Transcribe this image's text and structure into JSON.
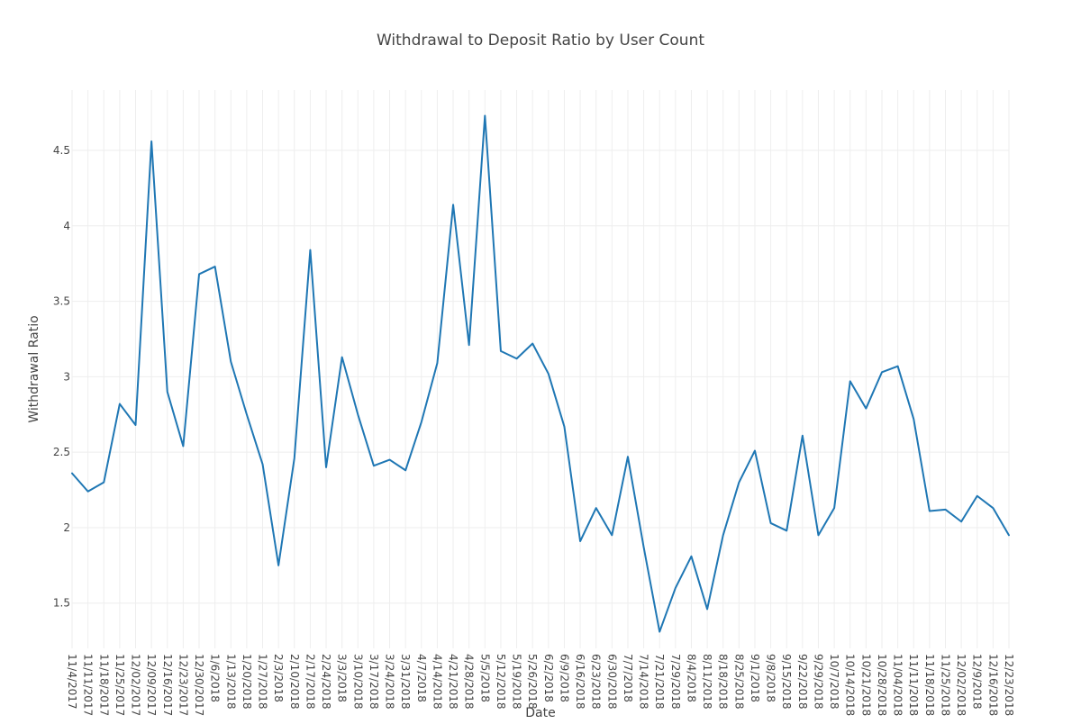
{
  "chart_data": {
    "type": "line",
    "title": "Withdrawal to Deposit Ratio by User Count",
    "xlabel": "Date",
    "ylabel": "Withdrawal Ratio",
    "ylim": [
      1.2,
      4.9
    ],
    "yticks": [
      1.5,
      2,
      2.5,
      3,
      3.5,
      4,
      4.5
    ],
    "ytick_labels": [
      "1.5",
      "2",
      "2.5",
      "3",
      "3.5",
      "4",
      "4.5"
    ],
    "grid": true,
    "line_color": "#1f77b4",
    "x": [
      "11/4/2017",
      "11/11/2017",
      "11/18/2017",
      "11/25/2017",
      "12/02/2017",
      "12/09/2017",
      "12/16/2017",
      "12/23/2017",
      "12/30/2017",
      "1/6/2018",
      "1/13/2018",
      "1/20/2018",
      "1/27/2018",
      "2/3/2018",
      "2/10/2018",
      "2/17/2018",
      "2/24/2018",
      "3/3/2018",
      "3/10/2018",
      "3/17/2018",
      "3/24/2018",
      "3/31/2018",
      "4/7/2018",
      "4/14/2018",
      "4/21/2018",
      "4/28/2018",
      "5/5/2018",
      "5/12/2018",
      "5/19/2018",
      "5/26/2018",
      "6/2/2018",
      "6/9/2018",
      "6/16/2018",
      "6/23/2018",
      "6/30/2018",
      "7/7/2018",
      "7/14/2018",
      "7/21/2018",
      "7/29/2018",
      "8/4/2018",
      "8/11/2018",
      "8/18/2018",
      "8/25/2018",
      "9/1/2018",
      "9/8/2018",
      "9/15/2018",
      "9/22/2018",
      "9/29/2018",
      "10/7/2018",
      "10/14/2018",
      "10/21/2018",
      "10/28/2018",
      "11/04/2018",
      "11/11/2018",
      "11/18/2018",
      "11/25/2018",
      "12/02/2018",
      "12/9/2018",
      "12/16/2018",
      "12/23/2018"
    ],
    "values": [
      2.36,
      2.24,
      2.3,
      2.82,
      2.68,
      4.56,
      2.9,
      2.54,
      3.68,
      3.73,
      3.1,
      2.75,
      2.42,
      1.75,
      2.46,
      3.84,
      2.4,
      3.13,
      2.75,
      2.41,
      2.45,
      2.38,
      2.7,
      3.09,
      4.14,
      3.21,
      4.73,
      3.17,
      3.12,
      3.22,
      3.02,
      2.67,
      1.91,
      2.13,
      1.95,
      2.47,
      1.87,
      1.31,
      1.6,
      1.81,
      1.46,
      1.95,
      2.3,
      2.51,
      2.03,
      1.98,
      2.61,
      1.95,
      2.13,
      2.97,
      2.79,
      3.03,
      3.07,
      2.72,
      2.11,
      2.12,
      2.04,
      2.21,
      2.13,
      1.95
    ]
  }
}
